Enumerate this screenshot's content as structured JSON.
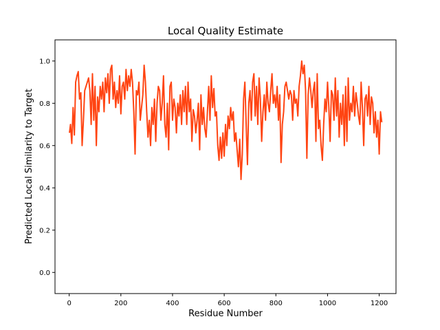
{
  "chart_data": {
    "type": "line",
    "title": "Local Quality Estimate",
    "xlabel": "Residue Number",
    "ylabel": "Predicted Local Similarity to Target",
    "xlim": [
      -55,
      1265
    ],
    "ylim": [
      -0.1,
      1.1
    ],
    "xticks": [
      0,
      200,
      400,
      600,
      800,
      1000,
      1200
    ],
    "yticks": [
      0.0,
      0.2,
      0.4,
      0.6,
      0.8,
      1.0
    ],
    "grid": false,
    "legend": "none",
    "series": [
      {
        "color": "#ff4412",
        "x": [
          1,
          5,
          10,
          15,
          20,
          25,
          30,
          35,
          40,
          45,
          50,
          55,
          60,
          65,
          70,
          75,
          80,
          85,
          90,
          95,
          100,
          105,
          110,
          115,
          120,
          125,
          130,
          135,
          140,
          145,
          150,
          155,
          160,
          165,
          170,
          175,
          180,
          185,
          190,
          195,
          200,
          205,
          210,
          215,
          220,
          225,
          230,
          235,
          240,
          245,
          250,
          255,
          260,
          265,
          270,
          275,
          280,
          285,
          290,
          295,
          300,
          305,
          310,
          315,
          320,
          325,
          330,
          335,
          340,
          345,
          350,
          355,
          360,
          365,
          370,
          375,
          380,
          385,
          390,
          395,
          400,
          405,
          410,
          415,
          420,
          425,
          430,
          435,
          440,
          445,
          450,
          455,
          460,
          465,
          470,
          475,
          480,
          485,
          490,
          495,
          500,
          505,
          510,
          515,
          520,
          525,
          530,
          535,
          540,
          545,
          550,
          555,
          560,
          565,
          570,
          575,
          580,
          585,
          590,
          595,
          600,
          605,
          610,
          615,
          620,
          625,
          630,
          635,
          640,
          645,
          650,
          655,
          660,
          665,
          670,
          675,
          680,
          685,
          690,
          695,
          700,
          705,
          710,
          715,
          720,
          725,
          730,
          735,
          740,
          745,
          750,
          755,
          760,
          765,
          770,
          775,
          780,
          785,
          790,
          795,
          800,
          805,
          810,
          815,
          820,
          825,
          830,
          835,
          840,
          845,
          850,
          855,
          860,
          865,
          870,
          875,
          880,
          885,
          890,
          895,
          900,
          905,
          910,
          915,
          920,
          925,
          930,
          935,
          940,
          945,
          950,
          955,
          960,
          965,
          970,
          975,
          980,
          985,
          990,
          995,
          1000,
          1005,
          1010,
          1015,
          1020,
          1025,
          1030,
          1035,
          1040,
          1045,
          1050,
          1055,
          1060,
          1065,
          1070,
          1075,
          1080,
          1085,
          1090,
          1095,
          1100,
          1105,
          1110,
          1115,
          1120,
          1125,
          1130,
          1135,
          1140,
          1145,
          1150,
          1155,
          1160,
          1165,
          1170,
          1175,
          1180,
          1185,
          1190,
          1195,
          1200,
          1205,
          1210
        ],
        "y": [
          0.66,
          0.7,
          0.61,
          0.78,
          0.65,
          0.9,
          0.93,
          0.95,
          0.82,
          0.85,
          0.6,
          0.72,
          0.86,
          0.88,
          0.9,
          0.92,
          0.86,
          0.7,
          0.94,
          0.72,
          0.88,
          0.6,
          0.83,
          0.76,
          0.88,
          0.82,
          0.9,
          0.76,
          0.92,
          0.85,
          0.94,
          0.8,
          0.96,
          0.98,
          0.82,
          0.9,
          0.78,
          0.86,
          0.8,
          0.93,
          0.75,
          0.88,
          0.9,
          0.82,
          0.96,
          0.86,
          0.93,
          0.88,
          0.96,
          0.9,
          0.76,
          0.56,
          0.86,
          0.84,
          0.9,
          0.72,
          0.78,
          0.84,
          0.98,
          0.9,
          0.76,
          0.64,
          0.72,
          0.6,
          0.78,
          0.7,
          0.82,
          0.62,
          0.8,
          0.88,
          0.86,
          0.72,
          0.8,
          0.93,
          0.7,
          0.64,
          0.8,
          0.58,
          0.88,
          0.9,
          0.72,
          0.82,
          0.78,
          0.66,
          0.8,
          0.74,
          0.84,
          0.7,
          0.86,
          0.76,
          0.88,
          0.7,
          0.9,
          0.76,
          0.82,
          0.62,
          0.77,
          0.74,
          0.66,
          0.72,
          0.8,
          0.58,
          0.84,
          0.7,
          0.78,
          0.68,
          0.64,
          0.76,
          0.88,
          0.72,
          0.93,
          0.78,
          0.87,
          0.74,
          0.76,
          0.6,
          0.53,
          0.64,
          0.54,
          0.66,
          0.55,
          0.7,
          0.6,
          0.74,
          0.68,
          0.78,
          0.72,
          0.76,
          0.62,
          0.66,
          0.58,
          0.5,
          0.63,
          0.44,
          0.56,
          0.82,
          0.9,
          0.7,
          0.51,
          0.8,
          0.86,
          0.72,
          0.9,
          0.94,
          0.74,
          0.88,
          0.7,
          0.92,
          0.82,
          0.62,
          0.76,
          0.84,
          0.72,
          0.9,
          0.8,
          0.76,
          0.86,
          0.94,
          0.8,
          0.84,
          0.78,
          0.88,
          0.72,
          0.84,
          0.52,
          0.7,
          0.76,
          0.88,
          0.9,
          0.86,
          0.82,
          0.86,
          0.84,
          0.72,
          0.86,
          0.8,
          0.82,
          0.74,
          0.88,
          0.93,
          1.0,
          0.94,
          0.98,
          0.86,
          0.54,
          0.84,
          0.92,
          0.86,
          0.78,
          0.86,
          0.9,
          0.62,
          0.94,
          0.68,
          0.72,
          0.6,
          0.53,
          0.7,
          0.82,
          0.76,
          0.9,
          0.78,
          0.62,
          0.86,
          0.84,
          0.72,
          0.92,
          0.74,
          0.86,
          0.64,
          0.8,
          0.7,
          0.84,
          0.6,
          0.88,
          0.62,
          0.92,
          0.72,
          0.8,
          0.76,
          0.88,
          0.74,
          0.85,
          0.8,
          0.74,
          0.7,
          0.9,
          0.78,
          0.6,
          0.82,
          0.84,
          0.74,
          0.88,
          0.7,
          0.83,
          0.8,
          0.66,
          0.76,
          0.64,
          0.72,
          0.56,
          0.76,
          0.71
        ]
      }
    ]
  }
}
